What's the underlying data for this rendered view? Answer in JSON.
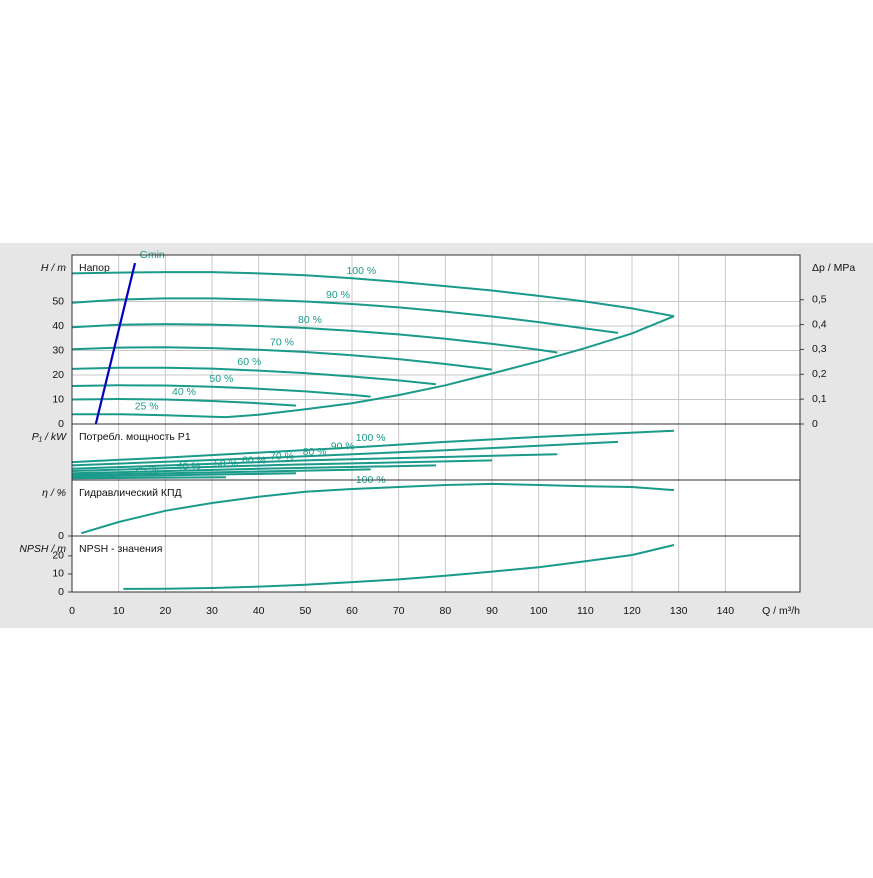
{
  "chart_data": [
    {
      "type": "line",
      "title": "Напор",
      "ylabel": "H / m",
      "y2label": "Δp / MPa",
      "ylim": [
        0,
        69
      ],
      "yticks": [
        0,
        10,
        20,
        30,
        40,
        50
      ],
      "y2lim": [
        0,
        0.68
      ],
      "y2ticks": [
        0,
        {
          "value": 0.1,
          "label": "0,1"
        },
        {
          "value": 0.2,
          "label": "0,2"
        },
        {
          "value": 0.3,
          "label": "0,3"
        },
        {
          "value": 0.4,
          "label": "0,4"
        },
        {
          "value": 0.5,
          "label": "0,5"
        }
      ],
      "grid": true,
      "series": [
        {
          "name": "100 %",
          "color": "#1a9a8a",
          "x": [
            0,
            10,
            20,
            30,
            40,
            50,
            60,
            70,
            80,
            90,
            100,
            110,
            120,
            129
          ],
          "values": [
            61.5,
            61.8,
            62,
            62,
            61.5,
            60.7,
            59.5,
            58,
            56.3,
            54.5,
            52.3,
            50,
            47.2,
            44
          ]
        },
        {
          "name": "90 %",
          "color": "#1a9a8a",
          "x": [
            0,
            10,
            20,
            30,
            40,
            50,
            60,
            70,
            80,
            90,
            100,
            110,
            117
          ],
          "values": [
            49.5,
            50.8,
            51.3,
            51.3,
            50.8,
            50,
            49,
            47.6,
            45.9,
            43.9,
            41.6,
            39,
            37.2
          ]
        },
        {
          "name": "80 %",
          "color": "#1a9a8a",
          "x": [
            0,
            10,
            20,
            30,
            40,
            50,
            60,
            70,
            80,
            90,
            100,
            104
          ],
          "values": [
            39.5,
            40.5,
            40.8,
            40.6,
            40,
            39.2,
            38,
            36.6,
            34.8,
            32.7,
            30.3,
            29.2
          ]
        },
        {
          "name": "70 %",
          "color": "#1a9a8a",
          "x": [
            0,
            10,
            20,
            30,
            40,
            50,
            60,
            70,
            80,
            90
          ],
          "values": [
            30.5,
            31.2,
            31.3,
            31,
            30.3,
            29.4,
            28.1,
            26.5,
            24.5,
            22.2
          ]
        },
        {
          "name": "60 %",
          "color": "#1a9a8a",
          "x": [
            0,
            10,
            20,
            30,
            40,
            50,
            60,
            70,
            78
          ],
          "values": [
            22.5,
            23,
            23,
            22.6,
            21.8,
            20.8,
            19.4,
            17.8,
            16.2
          ]
        },
        {
          "name": "50 %",
          "color": "#1a9a8a",
          "x": [
            0,
            10,
            20,
            30,
            40,
            50,
            60,
            64
          ],
          "values": [
            15.5,
            15.8,
            15.7,
            15.2,
            14.4,
            13.3,
            11.9,
            11.2
          ]
        },
        {
          "name": "40 %",
          "color": "#1a9a8a",
          "x": [
            0,
            10,
            20,
            30,
            40,
            48
          ],
          "values": [
            10,
            10.2,
            10,
            9.4,
            8.5,
            7.5
          ]
        },
        {
          "name": "25 %",
          "color": "#1a9a8a",
          "x": [
            0,
            10,
            20,
            30,
            33
          ],
          "values": [
            4,
            4,
            3.6,
            3,
            2.8
          ]
        },
        {
          "color": "#1a9a8a",
          "x": [
            33,
            40,
            50,
            60,
            70,
            80,
            90,
            100,
            110,
            120,
            129
          ],
          "values": [
            2.8,
            3.8,
            6,
            8.5,
            11.8,
            15.8,
            20.6,
            25.6,
            31,
            37,
            44
          ]
        },
        {
          "name": "Gmin",
          "color": "#0000c0",
          "x": [
            5.1,
            13.5
          ],
          "values": [
            0,
            65.7
          ]
        }
      ]
    },
    {
      "type": "line",
      "title": "Потребл. мощность P1",
      "ylabel": "P₁ / kW",
      "ylim": [
        0,
        10
      ],
      "series": [
        {
          "name": "100 %",
          "color": "#1a9a8a",
          "x": [
            0,
            20,
            40,
            60,
            80,
            100,
            129
          ],
          "values": [
            3.2,
            4.0,
            4.9,
            5.8,
            6.8,
            7.7,
            8.8
          ]
        },
        {
          "name": "90 %",
          "color": "#1a9a8a",
          "x": [
            0,
            40,
            80,
            117
          ],
          "values": [
            2.6,
            3.9,
            5.3,
            6.8
          ]
        },
        {
          "name": "80 %",
          "color": "#1a9a8a",
          "x": [
            0,
            50,
            104
          ],
          "values": [
            2.0,
            3.5,
            4.6
          ]
        },
        {
          "name": "70 %",
          "color": "#1a9a8a",
          "x": [
            0,
            45,
            90
          ],
          "values": [
            1.6,
            2.7,
            3.5
          ]
        },
        {
          "name": "60 %",
          "color": "#1a9a8a",
          "x": [
            0,
            40,
            78
          ],
          "values": [
            1.2,
            2.0,
            2.6
          ]
        },
        {
          "name": "50 %",
          "color": "#1a9a8a",
          "x": [
            0,
            32,
            64
          ],
          "values": [
            0.9,
            1.4,
            1.9
          ]
        },
        {
          "name": "40 %",
          "color": "#1a9a8a",
          "x": [
            0,
            24,
            48
          ],
          "values": [
            0.6,
            0.9,
            1.2
          ]
        },
        {
          "name": "25 %",
          "color": "#1a9a8a",
          "x": [
            0,
            16,
            33
          ],
          "values": [
            0.3,
            0.4,
            0.5
          ]
        }
      ]
    },
    {
      "type": "line",
      "title": "Гидравлический КПД",
      "ylabel": "η / %",
      "ylim": [
        0,
        100
      ],
      "yticks": [
        0
      ],
      "series": [
        {
          "name": "100 %",
          "color": "#1a9a8a",
          "x": [
            2,
            10,
            20,
            30,
            40,
            50,
            60,
            70,
            80,
            90,
            100,
            110,
            120,
            129
          ],
          "values": [
            5,
            25,
            45,
            59,
            70,
            79,
            84,
            87.5,
            91,
            93,
            91,
            89,
            87.5,
            82
          ]
        }
      ]
    },
    {
      "type": "line",
      "title": "NPSH - значения",
      "ylabel": "NPSH / m",
      "ylim": [
        0,
        31
      ],
      "yticks": [
        0,
        10,
        20
      ],
      "xlabel": "Q / m³/h",
      "xlim": [
        0,
        156
      ],
      "xticks": [
        0,
        10,
        20,
        30,
        40,
        50,
        60,
        70,
        80,
        90,
        100,
        110,
        120,
        130,
        140
      ],
      "series": [
        {
          "color": "#1a9a8a",
          "x": [
            11,
            20,
            30,
            40,
            50,
            60,
            70,
            80,
            90,
            100,
            110,
            120,
            129
          ],
          "values": [
            1.7,
            1.8,
            2.2,
            3,
            4,
            5.5,
            7,
            9,
            11.3,
            13.7,
            17,
            20.5,
            26
          ]
        }
      ]
    }
  ]
}
